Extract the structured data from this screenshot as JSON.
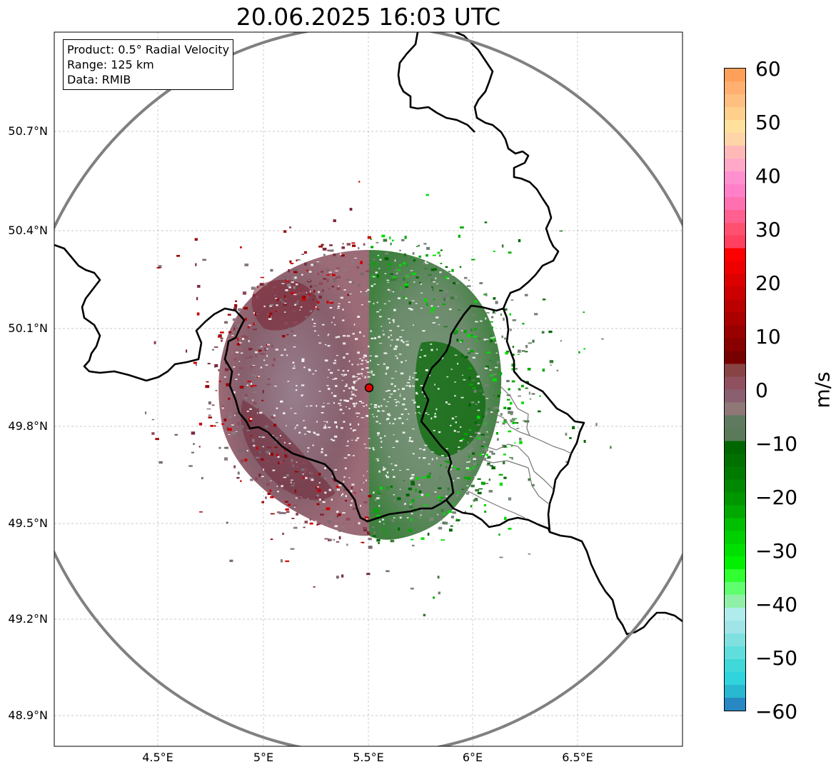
{
  "title": "20.06.2025 16:03 UTC",
  "info": {
    "product": "Product: 0.5° Radial Velocity",
    "range": "Range: 125 km",
    "data": "Data: RMIB"
  },
  "axes": {
    "lat_ticks": [
      "50.7°N",
      "50.4°N",
      "50.1°N",
      "49.8°N",
      "49.5°N",
      "49.2°N",
      "48.9°N"
    ],
    "lon_ticks": [
      "4.5°E",
      "5°E",
      "5.5°E",
      "6°E",
      "6.5°E"
    ]
  },
  "colorbar": {
    "unit": "m/s",
    "tick_labels": [
      "60",
      "50",
      "40",
      "30",
      "20",
      "10",
      "0",
      "−10",
      "−20",
      "−30",
      "−40",
      "−50",
      "−60"
    ],
    "min": -60,
    "max": 60,
    "colors_top_to_bottom": [
      "#ffa05a",
      "#ffb070",
      "#ffbf80",
      "#ffcf8c",
      "#ffe09c",
      "#ffd4a8",
      "#ffb8b8",
      "#ffa8c8",
      "#ff90d0",
      "#ff80c8",
      "#ff70b0",
      "#ff6090",
      "#ff5070",
      "#ff4060",
      "#ff0000",
      "#ee0000",
      "#dd0000",
      "#cc0000",
      "#bb0000",
      "#aa0000",
      "#990000",
      "#880000",
      "#770000",
      "#884444",
      "#8f5060",
      "#8a6070",
      "#907878",
      "#607a60",
      "#5a7a5a",
      "#006600",
      "#007000",
      "#007a00",
      "#008800",
      "#009600",
      "#00a800",
      "#00bf00",
      "#00d000",
      "#00e000",
      "#00f000",
      "#30ff30",
      "#60ff70",
      "#90f0a8",
      "#b0ecec",
      "#a0e4e8",
      "#80e0e0",
      "#60dede",
      "#40d8d8",
      "#30d4dc",
      "#28b8d0",
      "#2888c4"
    ]
  },
  "map": {
    "radar_site": {
      "lon": 5.5,
      "lat": 49.92
    },
    "colors": {
      "positive": "#7a3a4a",
      "negative": "#2e7a2e",
      "range_ring": "#808080",
      "borders": "#000000",
      "grid": "#b0b0b0"
    }
  }
}
